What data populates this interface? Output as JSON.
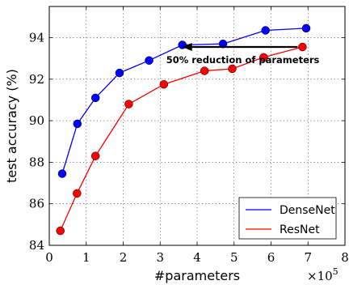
{
  "chart_data": {
    "type": "line",
    "xlabel": "#parameters",
    "ylabel": "test accuracy (%)",
    "x_multiplier_label": "×10",
    "x_multiplier_exp": "5",
    "xlim": [
      0,
      8
    ],
    "ylim": [
      84,
      95.5
    ],
    "xticks": [
      0,
      1,
      2,
      3,
      4,
      5,
      6,
      7,
      8
    ],
    "yticks": [
      84,
      86,
      88,
      90,
      92,
      94
    ],
    "grid": true,
    "legend_position": "lower-right",
    "series": [
      {
        "name": "DenseNet",
        "color": "#0000ff",
        "x": [
          0.35,
          0.76,
          1.25,
          1.9,
          2.7,
          3.6,
          4.7,
          5.85,
          6.95
        ],
        "y": [
          87.45,
          89.85,
          91.1,
          92.3,
          92.9,
          93.65,
          93.7,
          94.35,
          94.45
        ]
      },
      {
        "name": "ResNet",
        "color": "#ff0000",
        "x": [
          0.3,
          0.75,
          1.25,
          2.15,
          3.1,
          4.2,
          4.95,
          5.8,
          6.85
        ],
        "y": [
          84.7,
          86.5,
          88.3,
          90.8,
          91.75,
          92.4,
          92.5,
          93.05,
          93.55
        ]
      }
    ],
    "annotation": {
      "text": "50% reduction of parameters",
      "arrow_from": [
        6.85,
        93.55
      ],
      "arrow_to": [
        3.6,
        93.55
      ]
    }
  }
}
